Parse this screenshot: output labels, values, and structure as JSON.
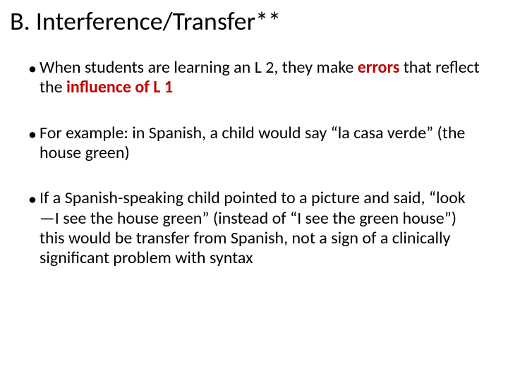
{
  "title": "B. Interference/Transfer**",
  "bullets": {
    "b1_pre": "When students are learning an L 2, they make ",
    "b1_em1": "errors",
    "b1_mid": " that reflect the ",
    "b1_em2": "influence of L 1",
    "b2": "For example: in Spanish, a child would say “la casa verde” (the house green)",
    "b3": "If a Spanish-speaking child pointed to a picture and said, “look—I see the house green” (instead of “I see the green house”) this would be transfer from Spanish, not a sign of a clinically significant problem with syntax"
  },
  "colors": {
    "emphasis": "#c00000",
    "text": "#000000",
    "background": "#ffffff"
  },
  "typography": {
    "title_fontsize": 36,
    "body_fontsize": 24,
    "font_family": "Calibri"
  }
}
